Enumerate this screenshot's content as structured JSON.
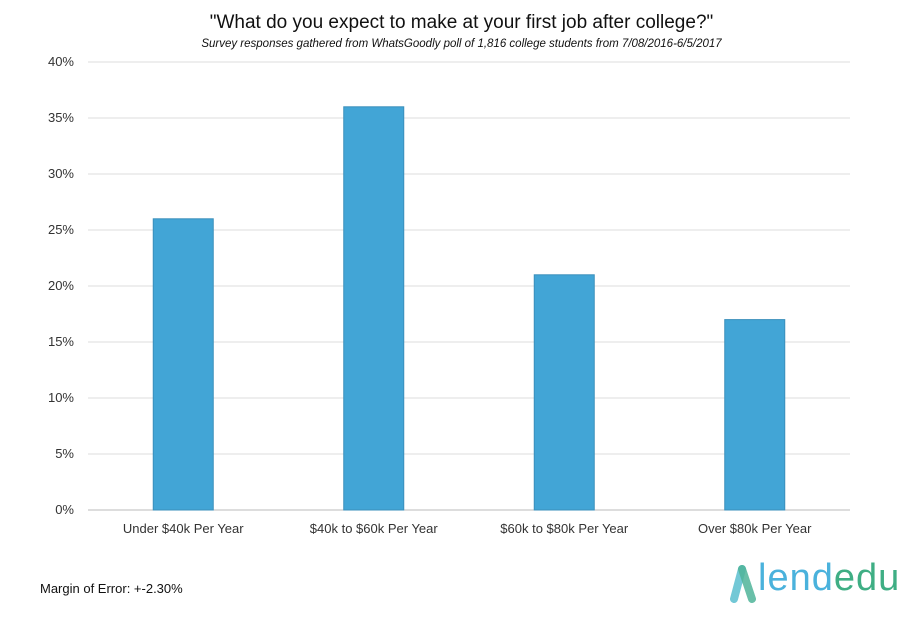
{
  "chart_data": {
    "type": "bar",
    "title": "\"What do you expect to make at your first job after college?\"",
    "subtitle": "Survey responses gathered from WhatsGoodly poll of 1,816 college students from 7/08/2016-6/5/2017",
    "categories": [
      "Under $40k Per Year",
      "$40k to $60k Per Year",
      "$60k to $80k Per Year",
      "Over $80k Per Year"
    ],
    "values": [
      26,
      36,
      21,
      17
    ],
    "yticks": [
      "0%",
      "5%",
      "10%",
      "15%",
      "20%",
      "25%",
      "30%",
      "35%",
      "40%"
    ],
    "ylim": [
      0,
      40
    ],
    "grid": true,
    "bar_color": "#42a5d6",
    "xlabel": "",
    "ylabel": ""
  },
  "footer": {
    "margin_of_error": "Margin of Error: +-2.30%"
  },
  "logo": {
    "text_a": "lend",
    "text_b": "edu"
  }
}
